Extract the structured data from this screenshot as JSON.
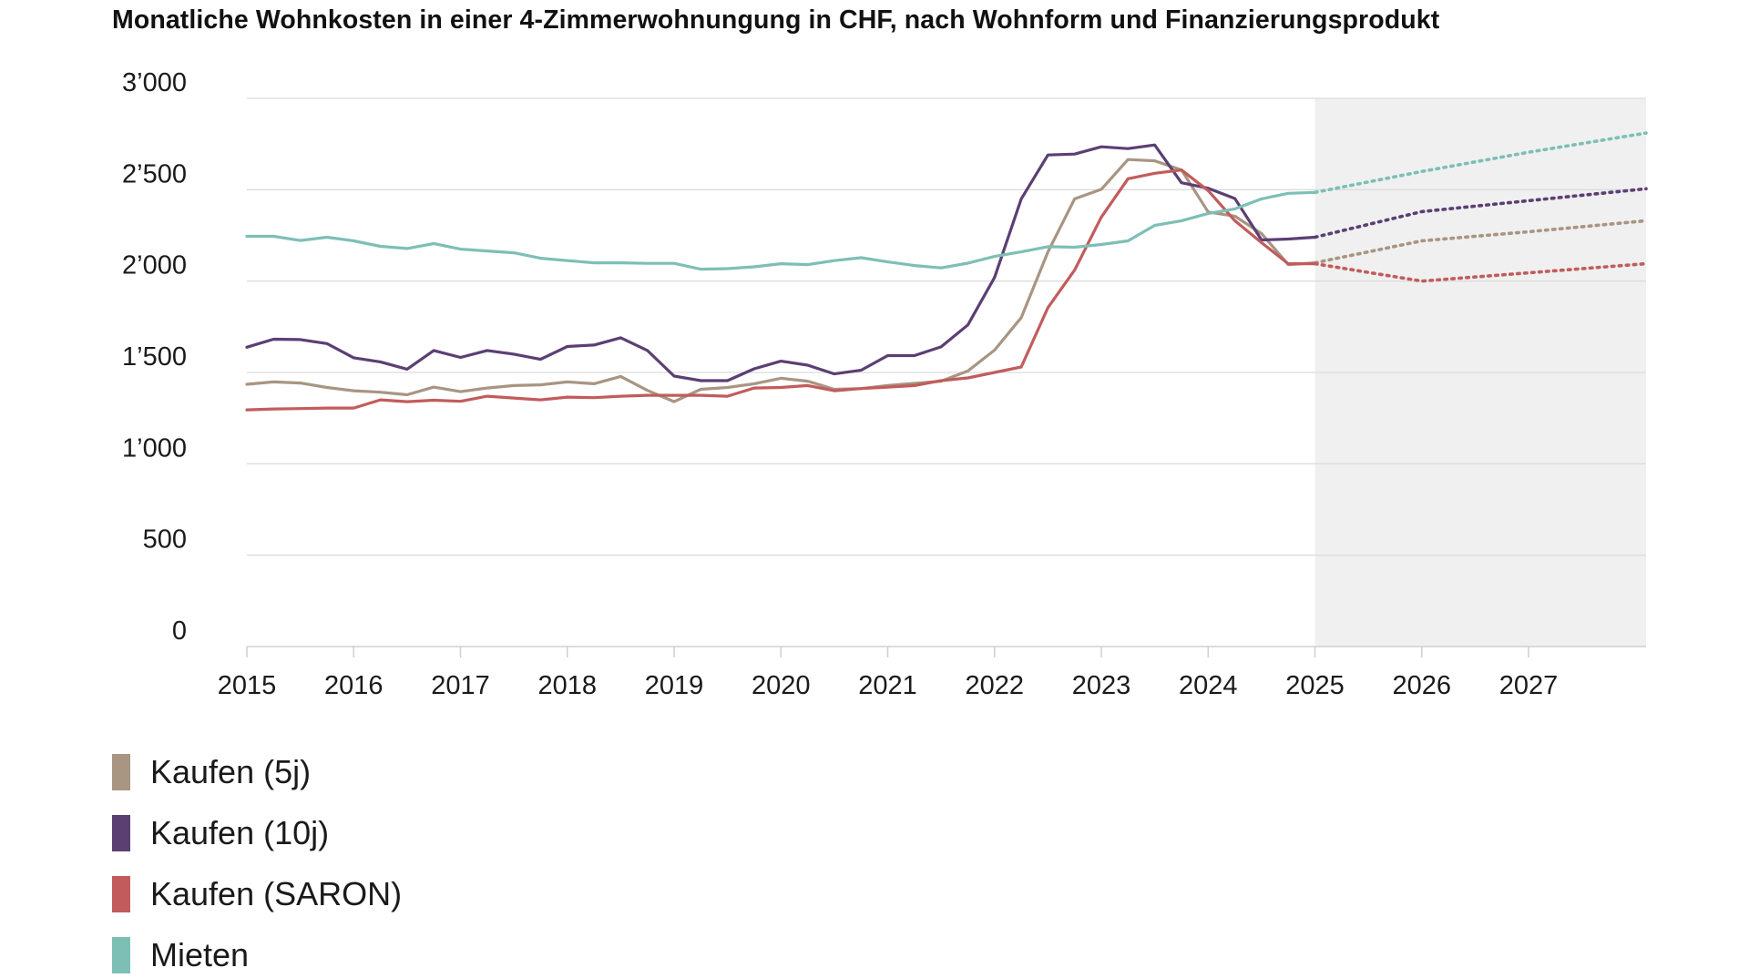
{
  "chart_data": {
    "type": "line",
    "title": "Monatliche Wohnkosten in einer 4-Zimmerwohnungung in CHF, nach Wohnform und Finanzierungsprodukt",
    "xlabel": "",
    "ylabel": "",
    "xlim": [
      2015,
      2028.1
    ],
    "ylim": [
      0,
      3000
    ],
    "x_ticks": [
      2015,
      2016,
      2017,
      2018,
      2019,
      2020,
      2021,
      2022,
      2023,
      2024,
      2025,
      2026,
      2027
    ],
    "x_tick_labels": [
      "2015",
      "2016",
      "2017",
      "2018",
      "2019",
      "2020",
      "2021",
      "2022",
      "2023",
      "2024",
      "2025",
      "2026",
      "2027"
    ],
    "y_ticks": [
      0,
      500,
      1000,
      1500,
      2000,
      2500,
      3000
    ],
    "y_tick_labels": [
      "0",
      "500",
      "1’000",
      "1’500",
      "2’000",
      "2’500",
      "3’000"
    ],
    "grid": "horizontal",
    "forecast_region": {
      "from": 2025,
      "to": 2028.1,
      "color": "#f0f0f0"
    },
    "forecast_style": "dotted",
    "legend_position": "bottom-left",
    "series": [
      {
        "name": "Kaufen (5j)",
        "color": "#a89582",
        "x": [
          2015,
          2015.25,
          2015.5,
          2015.75,
          2016,
          2016.25,
          2016.5,
          2016.75,
          2017,
          2017.25,
          2017.5,
          2017.75,
          2018,
          2018.25,
          2018.5,
          2018.75,
          2019,
          2019.25,
          2019.5,
          2019.75,
          2020,
          2020.25,
          2020.5,
          2020.75,
          2021,
          2021.25,
          2021.5,
          2021.75,
          2022,
          2022.25,
          2022.5,
          2022.75,
          2023,
          2023.25,
          2023.5,
          2023.75,
          2024,
          2024.25,
          2024.5,
          2024.75,
          2025
        ],
        "y": [
          1435,
          1448,
          1442,
          1418,
          1400,
          1392,
          1378,
          1420,
          1395,
          1415,
          1428,
          1432,
          1448,
          1438,
          1478,
          1402,
          1340,
          1408,
          1418,
          1438,
          1468,
          1452,
          1408,
          1412,
          1428,
          1440,
          1452,
          1508,
          1622,
          1800,
          2160,
          2450,
          2502,
          2665,
          2658,
          2608,
          2378,
          2355,
          2260,
          2090,
          2100
        ],
        "forecast_x": [
          2025,
          2026,
          2027,
          2028.1
        ],
        "forecast_y": [
          2100,
          2220,
          2270,
          2330
        ]
      },
      {
        "name": "Kaufen (10j)",
        "color": "#5b3f73",
        "x": [
          2015,
          2015.25,
          2015.5,
          2015.75,
          2016,
          2016.25,
          2016.5,
          2016.75,
          2017,
          2017.25,
          2017.5,
          2017.75,
          2018,
          2018.25,
          2018.5,
          2018.75,
          2019,
          2019.25,
          2019.5,
          2019.75,
          2020,
          2020.25,
          2020.5,
          2020.75,
          2021,
          2021.25,
          2021.5,
          2021.75,
          2022,
          2022.25,
          2022.5,
          2022.75,
          2023,
          2023.25,
          2023.5,
          2023.75,
          2024,
          2024.25,
          2024.5,
          2024.75,
          2025
        ],
        "y": [
          1638,
          1682,
          1680,
          1658,
          1580,
          1558,
          1518,
          1620,
          1582,
          1620,
          1600,
          1572,
          1642,
          1650,
          1690,
          1620,
          1480,
          1455,
          1455,
          1520,
          1562,
          1540,
          1492,
          1512,
          1592,
          1592,
          1640,
          1760,
          2020,
          2450,
          2690,
          2695,
          2735,
          2725,
          2745,
          2538,
          2508,
          2452,
          2225,
          2230,
          2240
        ],
        "forecast_x": [
          2025,
          2026,
          2027,
          2028.1
        ],
        "forecast_y": [
          2240,
          2380,
          2440,
          2505
        ]
      },
      {
        "name": "Kaufen (SARON)",
        "color": "#c25c5c",
        "x": [
          2015,
          2015.25,
          2015.5,
          2015.75,
          2016,
          2016.25,
          2016.5,
          2016.75,
          2017,
          2017.25,
          2017.5,
          2017.75,
          2018,
          2018.25,
          2018.5,
          2018.75,
          2019,
          2019.25,
          2019.5,
          2019.75,
          2020,
          2020.25,
          2020.5,
          2020.75,
          2021,
          2021.25,
          2021.5,
          2021.75,
          2022,
          2022.25,
          2022.5,
          2022.75,
          2023,
          2023.25,
          2023.5,
          2023.75,
          2024,
          2024.25,
          2024.5,
          2024.75,
          2025
        ],
        "y": [
          1295,
          1300,
          1302,
          1305,
          1305,
          1350,
          1340,
          1348,
          1342,
          1370,
          1360,
          1350,
          1365,
          1362,
          1370,
          1375,
          1375,
          1375,
          1370,
          1415,
          1418,
          1428,
          1400,
          1412,
          1420,
          1428,
          1455,
          1470,
          1500,
          1530,
          1855,
          2060,
          2350,
          2560,
          2590,
          2608,
          2495,
          2330,
          2210,
          2095,
          2095
        ],
        "forecast_x": [
          2025,
          2026,
          2027,
          2028.1
        ],
        "forecast_y": [
          2095,
          2000,
          2045,
          2095
        ]
      },
      {
        "name": "Mieten",
        "color": "#7dbfb5",
        "x": [
          2015,
          2015.25,
          2015.5,
          2015.75,
          2016,
          2016.25,
          2016.5,
          2016.75,
          2017,
          2017.25,
          2017.5,
          2017.75,
          2018,
          2018.25,
          2018.5,
          2018.75,
          2019,
          2019.25,
          2019.5,
          2019.75,
          2020,
          2020.25,
          2020.5,
          2020.75,
          2021,
          2021.25,
          2021.5,
          2021.75,
          2022,
          2022.25,
          2022.5,
          2022.75,
          2023,
          2023.25,
          2023.5,
          2023.75,
          2024,
          2024.25,
          2024.5,
          2024.75,
          2025
        ],
        "y": [
          2245,
          2245,
          2222,
          2240,
          2220,
          2190,
          2178,
          2205,
          2175,
          2165,
          2155,
          2125,
          2112,
          2100,
          2100,
          2097,
          2097,
          2065,
          2068,
          2078,
          2095,
          2090,
          2112,
          2128,
          2105,
          2085,
          2072,
          2098,
          2135,
          2160,
          2188,
          2185,
          2200,
          2220,
          2305,
          2330,
          2370,
          2395,
          2450,
          2480,
          2485
        ],
        "forecast_x": [
          2025,
          2026,
          2027,
          2028.1
        ],
        "forecast_y": [
          2485,
          2600,
          2705,
          2810
        ]
      }
    ]
  }
}
